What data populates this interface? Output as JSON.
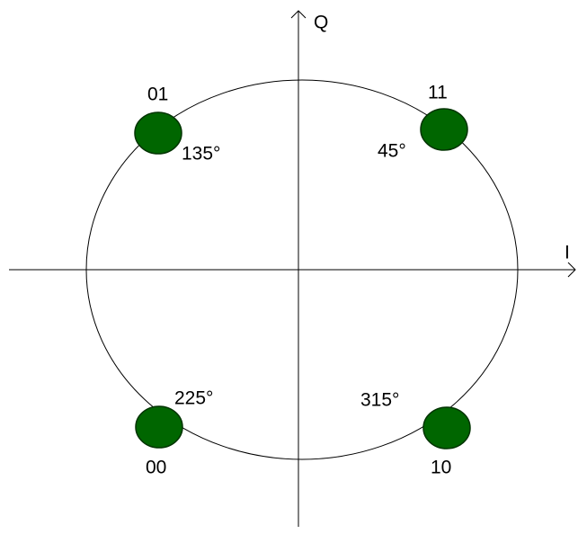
{
  "axes": {
    "i_label": "I",
    "q_label": "Q"
  },
  "points": [
    {
      "bits": "01",
      "angle": "135°"
    },
    {
      "bits": "11",
      "angle": "45°"
    },
    {
      "bits": "00",
      "angle": "225°"
    },
    {
      "bits": "10",
      "angle": "315°"
    }
  ]
}
